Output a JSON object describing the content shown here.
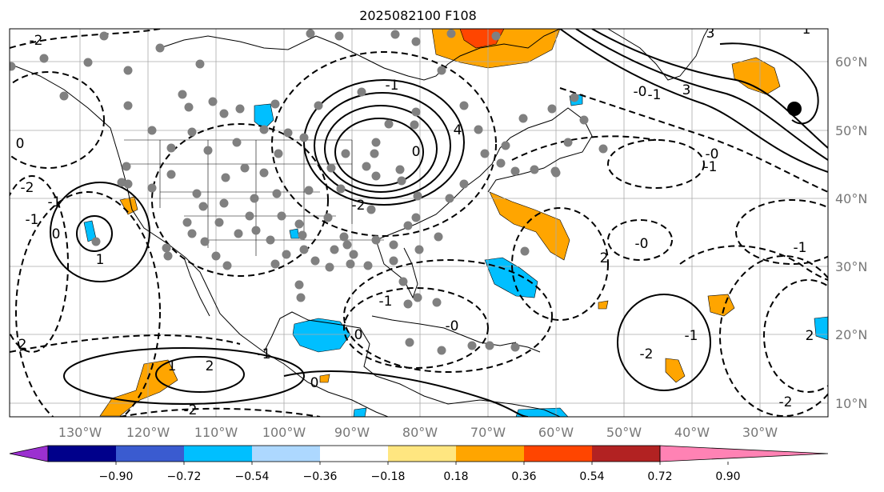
{
  "title": "2025082100 F108",
  "map": {
    "lon_range": [
      -140,
      -20
    ],
    "lat_range": [
      7,
      65
    ],
    "lon_labels": [
      "130°W",
      "120°W",
      "110°W",
      "100°W",
      "90°W",
      "80°W",
      "70°W",
      "60°W",
      "50°W",
      "40°W",
      "30°W"
    ],
    "lat_labels": [
      "60°N",
      "50°N",
      "40°N",
      "30°N",
      "20°N",
      "10°N"
    ],
    "grid": true,
    "contour_labels": [
      "-2",
      "-2",
      "0",
      "2",
      "-1",
      "0",
      "-1",
      "1",
      "-2",
      "2",
      "1",
      "-1",
      "0",
      "-0",
      "2",
      "3",
      "-0",
      "-1",
      "3",
      "4",
      "-1",
      "0",
      "-2",
      "1",
      "-0",
      "-1",
      "2",
      "-2",
      "-1",
      "-0",
      "-1",
      "0",
      "-1",
      "-2"
    ]
  },
  "colorbar": {
    "ticks": [
      "−0.90",
      "−0.72",
      "−0.54",
      "−0.36",
      "−0.18",
      "0.18",
      "0.36",
      "0.54",
      "0.72",
      "0.90"
    ],
    "colors": [
      "#9b30d0",
      "#00008b",
      "#3a5bd0",
      "#00bfff",
      "#add8ff",
      "#ffffff",
      "#ffe680",
      "#ffa500",
      "#ff4500",
      "#b22222",
      "#ff82b4"
    ]
  },
  "colors": {
    "positive_fill": "#ffa500",
    "negative_fill": "#00bfff",
    "strong_positive_fill": "#ff4500",
    "marker": "#808080"
  }
}
